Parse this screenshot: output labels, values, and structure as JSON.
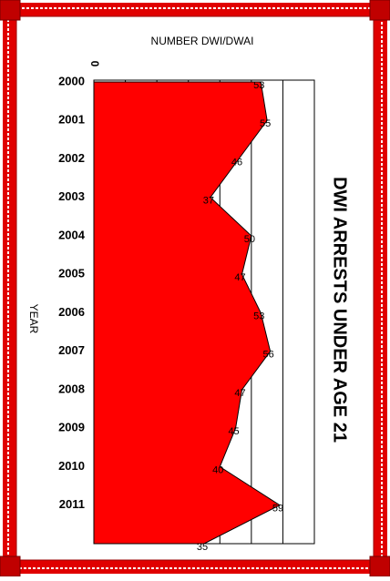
{
  "chart_data": {
    "type": "area",
    "title": "DWI ARRESTS UNDER AGE 21",
    "x_axis_label": "NUMBER DWI/DWAI",
    "y_axis_label": "YEAR",
    "categories": [
      "2000",
      "2001",
      "2002",
      "2003",
      "2004",
      "2005",
      "2006",
      "2007",
      "2008",
      "2009",
      "2010",
      "2011",
      null
    ],
    "values": [
      53,
      55,
      46,
      37,
      50,
      47,
      53,
      56,
      47,
      45,
      40,
      59,
      35
    ],
    "color": "#ff0000",
    "xlim": [
      0,
      70
    ],
    "xticks": [
      0
    ],
    "grid_values": [
      10,
      20,
      30,
      40,
      50,
      60,
      70
    ],
    "grid": true
  }
}
